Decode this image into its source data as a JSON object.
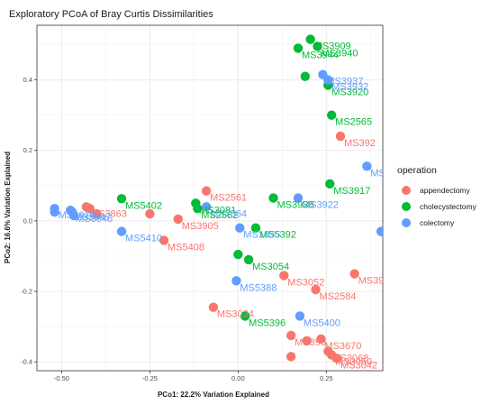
{
  "chart_data": {
    "type": "scatter",
    "title": "Exploratory PCoA of Bray Curtis Dissimilarities",
    "xlabel": "PCo1: 22.2% Variation Explained",
    "ylabel": "PCo2: 16.6% Variation Explained",
    "xlim": [
      -0.57,
      0.41
    ],
    "ylim": [
      -0.425,
      0.555
    ],
    "x_ticks": [
      -0.5,
      -0.25,
      0.0,
      0.25
    ],
    "x_tick_labels": [
      "-0.50",
      "-0.25",
      "0.00",
      "0.25"
    ],
    "y_ticks": [
      -0.4,
      -0.2,
      0.0,
      0.2,
      0.4
    ],
    "y_tick_labels": [
      "-0.4",
      "-0.2",
      "0.0",
      "0.2",
      "0.4"
    ],
    "grid": true,
    "legend": {
      "title": "operation",
      "placement": "right",
      "entries": [
        {
          "label": "appendectomy",
          "color": "#F8766D"
        },
        {
          "label": "cholecystectomy",
          "color": "#00BA38"
        },
        {
          "label": "colectomy",
          "color": "#619CFF"
        }
      ]
    },
    "series": [
      {
        "name": "appendectomy",
        "color": "#F8766D",
        "points": [
          {
            "x": 0.29,
            "y": 0.24,
            "label": "MS392"
          },
          {
            "x": -0.09,
            "y": 0.085,
            "label": "MS2561"
          },
          {
            "x": -0.43,
            "y": 0.04,
            "label": "MS3863"
          },
          {
            "x": -0.42,
            "y": 0.035,
            "label": ""
          },
          {
            "x": -0.25,
            "y": 0.02,
            "label": ""
          },
          {
            "x": -0.21,
            "y": -0.055,
            "label": "MS5408"
          },
          {
            "x": -0.17,
            "y": 0.005,
            "label": "MS3905"
          },
          {
            "x": -0.4,
            "y": 0.02,
            "label": ""
          },
          {
            "x": 0.33,
            "y": -0.15,
            "label": "MS39"
          },
          {
            "x": 0.22,
            "y": -0.195,
            "label": "MS2584"
          },
          {
            "x": 0.13,
            "y": -0.155,
            "label": "MS3052"
          },
          {
            "x": -0.07,
            "y": -0.245,
            "label": "MS3034"
          },
          {
            "x": 0.15,
            "y": -0.325,
            "label": "MS390"
          },
          {
            "x": 0.15,
            "y": -0.385,
            "label": ""
          },
          {
            "x": 0.195,
            "y": -0.34,
            "label": ""
          },
          {
            "x": 0.235,
            "y": -0.335,
            "label": "MS3670"
          },
          {
            "x": 0.255,
            "y": -0.37,
            "label": "MS3068"
          },
          {
            "x": 0.265,
            "y": -0.38,
            "label": "MS3050"
          },
          {
            "x": 0.28,
            "y": -0.39,
            "label": "MS3042"
          }
        ]
      },
      {
        "name": "cholecystectomy",
        "color": "#00BA38",
        "points": [
          {
            "x": 0.205,
            "y": 0.515,
            "label": "MS3909"
          },
          {
            "x": 0.225,
            "y": 0.495,
            "label": "MS3940"
          },
          {
            "x": 0.17,
            "y": 0.49,
            "label": "MS3944"
          },
          {
            "x": 0.255,
            "y": 0.385,
            "label": "MS3920"
          },
          {
            "x": 0.19,
            "y": 0.41,
            "label": ""
          },
          {
            "x": 0.265,
            "y": 0.3,
            "label": "MS2565"
          },
          {
            "x": 0.26,
            "y": 0.105,
            "label": "MS3917"
          },
          {
            "x": -0.33,
            "y": 0.063,
            "label": "MS5402"
          },
          {
            "x": -0.12,
            "y": 0.05,
            "label": "MS3081"
          },
          {
            "x": -0.115,
            "y": 0.035,
            "label": "MS2562"
          },
          {
            "x": 0.05,
            "y": -0.02,
            "label": "MS5392"
          },
          {
            "x": 0.0,
            "y": -0.095,
            "label": ""
          },
          {
            "x": 0.03,
            "y": -0.11,
            "label": "MS3054"
          },
          {
            "x": 0.02,
            "y": -0.27,
            "label": "MS5396"
          },
          {
            "x": 0.1,
            "y": 0.065,
            "label": "MS3938"
          }
        ]
      },
      {
        "name": "colectomy",
        "color": "#619CFF",
        "points": [
          {
            "x": 0.24,
            "y": 0.415,
            "label": "MS3937"
          },
          {
            "x": 0.255,
            "y": 0.4,
            "label": "MS3932"
          },
          {
            "x": 0.365,
            "y": 0.155,
            "label": "MS"
          },
          {
            "x": 0.17,
            "y": 0.065,
            "label": "MS3922"
          },
          {
            "x": -0.09,
            "y": 0.04,
            "label": "MS2564"
          },
          {
            "x": -0.52,
            "y": 0.035,
            "label": "MS3070"
          },
          {
            "x": -0.52,
            "y": 0.025,
            "label": ""
          },
          {
            "x": -0.475,
            "y": 0.03,
            "label": "MS3947"
          },
          {
            "x": -0.47,
            "y": 0.025,
            "label": "MS3946"
          },
          {
            "x": -0.465,
            "y": 0.015,
            "label": ""
          },
          {
            "x": -0.33,
            "y": -0.03,
            "label": "MS5410"
          },
          {
            "x": 0.005,
            "y": -0.02,
            "label": "MS1655"
          },
          {
            "x": -0.005,
            "y": -0.17,
            "label": "MS5388"
          },
          {
            "x": 0.175,
            "y": -0.27,
            "label": "MS5400"
          },
          {
            "x": 0.405,
            "y": -0.03,
            "label": ""
          }
        ]
      }
    ]
  }
}
